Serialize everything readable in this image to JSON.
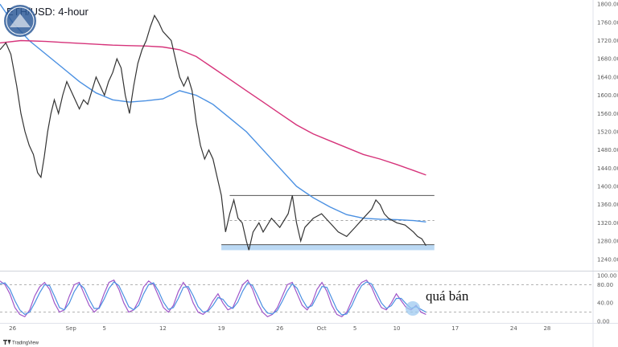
{
  "chart_data": {
    "type": "line",
    "title": "ETH/USD: 4-hour",
    "annotation": "quá bán",
    "brand": "TradingView",
    "price_axis": {
      "ticks": [
        "1800.00",
        "1760.00",
        "1720.00",
        "1680.00",
        "1640.00",
        "1600.00",
        "1560.00",
        "1520.00",
        "1480.00",
        "1440.00",
        "1400.00",
        "1360.00",
        "1320.00",
        "1280.00",
        "1240.00"
      ],
      "range": [
        1222,
        1802
      ]
    },
    "rsi_axis": {
      "ticks": [
        "100.00",
        "80.00",
        "40.00",
        "0.00"
      ],
      "range": [
        0,
        100
      ],
      "levels": [
        80,
        20
      ]
    },
    "x_axis": {
      "ticks": [
        {
          "label": "26",
          "day": -6
        },
        {
          "label": "Sep",
          "day": 1
        },
        {
          "label": "5",
          "day": 5
        },
        {
          "label": "12",
          "day": 12
        },
        {
          "label": "19",
          "day": 19
        },
        {
          "label": "26",
          "day": 26
        },
        {
          "label": "Oct",
          "day": 31
        },
        {
          "label": "5",
          "day": 35
        },
        {
          "label": "10",
          "day": 40
        },
        {
          "label": "17",
          "day": 47
        },
        {
          "label": "24",
          "day": 54
        },
        {
          "label": "28",
          "day": 58
        }
      ],
      "range": [
        -7.5,
        63.5
      ]
    },
    "price_series": {
      "name": "ETH/USD",
      "color": "#333333",
      "points": [
        [
          -7.5,
          1700
        ],
        [
          -6.8,
          1715
        ],
        [
          -6.2,
          1690
        ],
        [
          -5.5,
          1620
        ],
        [
          -5,
          1560
        ],
        [
          -4.5,
          1520
        ],
        [
          -4,
          1490
        ],
        [
          -3.5,
          1470
        ],
        [
          -3,
          1430
        ],
        [
          -2.6,
          1420
        ],
        [
          -2.2,
          1465
        ],
        [
          -1.8,
          1520
        ],
        [
          -1.4,
          1560
        ],
        [
          -1,
          1590
        ],
        [
          -0.5,
          1560
        ],
        [
          0,
          1600
        ],
        [
          0.5,
          1630
        ],
        [
          1,
          1610
        ],
        [
          1.5,
          1590
        ],
        [
          2,
          1570
        ],
        [
          2.5,
          1590
        ],
        [
          3,
          1580
        ],
        [
          3.5,
          1610
        ],
        [
          4,
          1640
        ],
        [
          4.5,
          1620
        ],
        [
          5,
          1600
        ],
        [
          5.5,
          1630
        ],
        [
          6,
          1650
        ],
        [
          6.5,
          1680
        ],
        [
          7,
          1660
        ],
        [
          7.5,
          1600
        ],
        [
          8,
          1560
        ],
        [
          8.5,
          1620
        ],
        [
          9,
          1670
        ],
        [
          9.5,
          1700
        ],
        [
          10,
          1720
        ],
        [
          10.5,
          1750
        ],
        [
          11,
          1775
        ],
        [
          11.5,
          1760
        ],
        [
          12,
          1740
        ],
        [
          12.5,
          1730
        ],
        [
          13,
          1720
        ],
        [
          13.5,
          1680
        ],
        [
          14,
          1640
        ],
        [
          14.5,
          1620
        ],
        [
          15,
          1640
        ],
        [
          15.5,
          1610
        ],
        [
          16,
          1540
        ],
        [
          16.5,
          1490
        ],
        [
          17,
          1460
        ],
        [
          17.5,
          1480
        ],
        [
          18,
          1460
        ],
        [
          18.5,
          1420
        ],
        [
          19,
          1380
        ],
        [
          19.5,
          1300
        ],
        [
          20,
          1340
        ],
        [
          20.5,
          1370
        ],
        [
          21,
          1330
        ],
        [
          21.5,
          1320
        ],
        [
          22,
          1280
        ],
        [
          22.3,
          1260
        ],
        [
          22.8,
          1300
        ],
        [
          23.5,
          1320
        ],
        [
          24,
          1300
        ],
        [
          25,
          1330
        ],
        [
          26,
          1310
        ],
        [
          27,
          1340
        ],
        [
          27.5,
          1380
        ],
        [
          28,
          1320
        ],
        [
          28.5,
          1280
        ],
        [
          29,
          1310
        ],
        [
          30,
          1330
        ],
        [
          31,
          1340
        ],
        [
          32,
          1320
        ],
        [
          33,
          1300
        ],
        [
          34,
          1290
        ],
        [
          35,
          1310
        ],
        [
          36,
          1330
        ],
        [
          37,
          1350
        ],
        [
          37.5,
          1370
        ],
        [
          38,
          1360
        ],
        [
          38.5,
          1340
        ],
        [
          39,
          1330
        ],
        [
          40,
          1320
        ],
        [
          41,
          1315
        ],
        [
          42,
          1300
        ],
        [
          42.5,
          1290
        ],
        [
          43,
          1285
        ],
        [
          43.5,
          1270
        ]
      ]
    },
    "ma_series": [
      {
        "color": "#4a90e2",
        "points": [
          [
            -7.5,
            1800
          ],
          [
            -6,
            1760
          ],
          [
            -4,
            1720
          ],
          [
            -2,
            1690
          ],
          [
            0,
            1660
          ],
          [
            2,
            1630
          ],
          [
            4,
            1605
          ],
          [
            6,
            1590
          ],
          [
            8,
            1585
          ],
          [
            10,
            1588
          ],
          [
            12,
            1592
          ],
          [
            14,
            1610
          ],
          [
            16,
            1600
          ],
          [
            18,
            1580
          ],
          [
            20,
            1550
          ],
          [
            22,
            1520
          ],
          [
            24,
            1480
          ],
          [
            26,
            1440
          ],
          [
            28,
            1400
          ],
          [
            30,
            1375
          ],
          [
            32,
            1355
          ],
          [
            34,
            1338
          ],
          [
            36,
            1330
          ],
          [
            38,
            1328
          ],
          [
            40,
            1327
          ],
          [
            42,
            1325
          ],
          [
            43.5,
            1322
          ]
        ]
      },
      {
        "color": "#d6337a",
        "points": [
          [
            -7.5,
            1715
          ],
          [
            -5,
            1720
          ],
          [
            -2,
            1718
          ],
          [
            0,
            1716
          ],
          [
            2,
            1714
          ],
          [
            4,
            1712
          ],
          [
            6,
            1710
          ],
          [
            8,
            1709
          ],
          [
            10,
            1708
          ],
          [
            12,
            1706
          ],
          [
            14,
            1700
          ],
          [
            16,
            1685
          ],
          [
            18,
            1660
          ],
          [
            20,
            1635
          ],
          [
            22,
            1610
          ],
          [
            24,
            1585
          ],
          [
            26,
            1560
          ],
          [
            28,
            1535
          ],
          [
            30,
            1515
          ],
          [
            32,
            1500
          ],
          [
            34,
            1485
          ],
          [
            36,
            1470
          ],
          [
            38,
            1460
          ],
          [
            40,
            1448
          ],
          [
            42,
            1435
          ],
          [
            43.5,
            1425
          ]
        ]
      }
    ],
    "resistance_level": 1380,
    "mid_level": 1325,
    "support_band": [
      1260,
      1272
    ],
    "support_line": 1272,
    "rsi_series": [
      {
        "color": "#a056c8",
        "values": [
          88,
          80,
          60,
          30,
          15,
          10,
          25,
          55,
          75,
          85,
          70,
          40,
          20,
          25,
          55,
          80,
          85,
          60,
          35,
          20,
          30,
          60,
          85,
          90,
          70,
          40,
          20,
          25,
          45,
          75,
          88,
          80,
          55,
          30,
          20,
          35,
          65,
          85,
          70,
          40,
          20,
          15,
          25,
          45,
          60,
          40,
          25,
          30,
          55,
          80,
          90,
          70,
          40,
          20,
          10,
          15,
          30,
          55,
          80,
          85,
          60,
          35,
          25,
          40,
          70,
          85,
          65,
          35,
          15,
          10,
          20,
          45,
          70,
          85,
          90,
          75,
          50,
          30,
          25,
          40,
          60,
          45,
          30,
          25,
          35,
          20,
          15
        ]
      },
      {
        "color": "#4a90e2",
        "values": [
          82,
          84,
          70,
          45,
          25,
          15,
          20,
          40,
          62,
          80,
          78,
          55,
          30,
          25,
          40,
          65,
          82,
          72,
          48,
          28,
          28,
          48,
          72,
          86,
          78,
          55,
          32,
          25,
          35,
          60,
          80,
          84,
          66,
          42,
          26,
          30,
          50,
          74,
          76,
          56,
          32,
          20,
          22,
          35,
          52,
          48,
          34,
          28,
          42,
          66,
          84,
          78,
          56,
          32,
          18,
          16,
          24,
          44,
          66,
          82,
          72,
          48,
          30,
          34,
          55,
          76,
          74,
          50,
          26,
          14,
          16,
          34,
          58,
          78,
          86,
          82,
          62,
          40,
          28,
          34,
          50,
          50,
          38,
          28,
          32,
          26,
          20
        ]
      }
    ],
    "colors": {
      "support": "#9ec9f0",
      "highlight": "#9ec9f0",
      "grid": "#e6e6e6"
    }
  }
}
